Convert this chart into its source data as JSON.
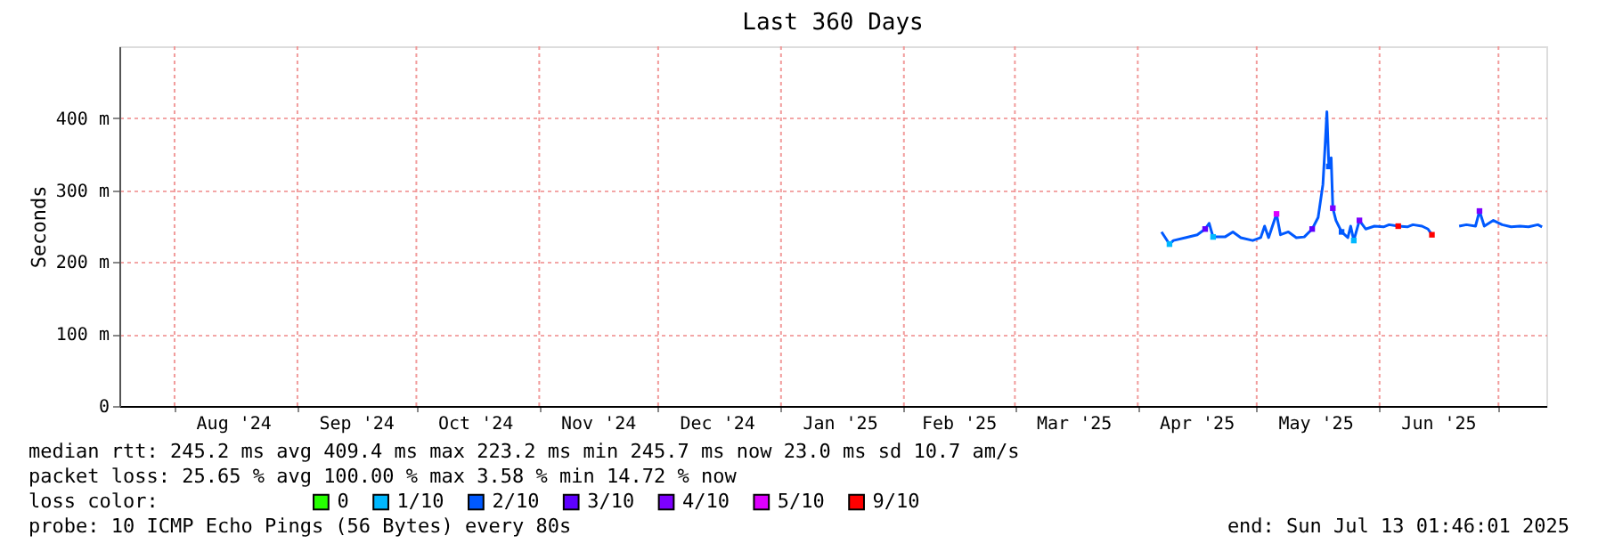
{
  "chart_data": {
    "type": "line",
    "title": "Last 360 Days",
    "ylabel": "Seconds",
    "legend_title": "loss color:",
    "legend": "bottom",
    "grid": true,
    "xlim": [
      "2024-07-18T01:46",
      "2025-07-13T01:46"
    ],
    "ylim": [
      0,
      500
    ],
    "yticks": [
      0,
      {
        "value": 100,
        "label": "100 m"
      },
      {
        "value": 200,
        "label": "200 m"
      },
      {
        "value": 300,
        "label": "300 m"
      },
      {
        "value": 400,
        "label": "400 m"
      }
    ],
    "xticks": [
      {
        "value": "2024-08-01",
        "label": null
      },
      {
        "value": "2024-08-16",
        "label": "Aug '24"
      },
      {
        "value": "2024-09-01",
        "label": null
      },
      {
        "value": "2024-09-16",
        "label": "Sep '24"
      },
      {
        "value": "2024-10-01",
        "label": null
      },
      {
        "value": "2024-10-16",
        "label": "Oct '24"
      },
      {
        "value": "2024-11-01",
        "label": null
      },
      {
        "value": "2024-11-16",
        "label": "Nov '24"
      },
      {
        "value": "2024-12-01",
        "label": null
      },
      {
        "value": "2024-12-16",
        "label": "Dec '24"
      },
      {
        "value": "2025-01-01",
        "label": null
      },
      {
        "value": "2025-01-16",
        "label": "Jan '25"
      },
      {
        "value": "2025-02-01",
        "label": null
      },
      {
        "value": "2025-02-15",
        "label": "Feb '25"
      },
      {
        "value": "2025-03-01",
        "label": null
      },
      {
        "value": "2025-03-16",
        "label": "Mar '25"
      },
      {
        "value": "2025-04-01",
        "label": null
      },
      {
        "value": "2025-04-16",
        "label": "Apr '25"
      },
      {
        "value": "2025-05-01",
        "label": null
      },
      {
        "value": "2025-05-16",
        "label": "May '25"
      },
      {
        "value": "2025-06-01",
        "label": null
      },
      {
        "value": "2025-06-16",
        "label": "Jun '25"
      },
      {
        "value": "2025-07-01",
        "label": null
      }
    ],
    "series": [
      {
        "color": "#0059ff",
        "x": [
          "2025-04-07",
          "2025-04-09",
          "2025-04-10",
          "2025-04-13",
          "2025-04-16",
          "2025-04-18",
          "2025-04-19",
          "2025-04-20",
          "2025-04-23",
          "2025-04-25",
          "2025-04-27",
          "2025-04-30",
          "2025-05-02",
          "2025-05-03",
          "2025-05-04",
          "2025-05-06",
          "2025-05-07",
          "2025-05-09",
          "2025-05-11",
          "2025-05-13",
          "2025-05-15",
          "2025-05-16T12:00",
          "2025-05-17T17:00",
          "2025-05-18T07:00",
          "2025-05-18T17:00",
          "2025-05-19T05:00",
          "2025-05-19T19:00",
          "2025-05-20T05:00",
          "2025-05-21",
          "2025-05-22T10:00",
          "2025-05-24",
          "2025-05-24T17:00",
          "2025-05-25T12:00",
          "2025-05-26T22:00",
          "2025-05-28T12:00",
          "2025-05-30T17:00",
          "2025-06-02",
          "2025-06-03T10:00",
          "2025-06-05T17:00",
          "2025-06-08",
          "2025-06-09T10:00",
          "2025-06-11T17:00",
          "2025-06-13T05:00",
          "2025-06-14T05:00",
          "2025-06-18",
          "2025-06-21T02:00",
          "2025-06-22T22:00",
          "2025-06-25T05:00",
          "2025-06-26T05:00",
          "2025-06-27T10:00",
          "2025-06-29T17:00",
          "2025-07-01T22:00",
          "2025-07-04T05:00",
          "2025-07-06T10:00",
          "2025-07-08T14:00",
          "2025-07-10T22:00",
          "2025-07-12"
        ],
        "values": [
          242,
          225,
          230,
          234,
          238,
          246,
          254,
          235,
          235,
          242,
          234,
          230,
          234,
          250,
          234,
          267,
          238,
          242,
          234,
          235,
          246,
          262,
          308,
          365,
          409,
          333,
          345,
          275,
          258,
          242,
          234,
          250,
          230,
          258,
          246,
          250,
          249,
          252,
          250,
          249,
          252,
          250,
          246,
          238,
          null,
          250,
          252,
          250,
          271,
          250,
          258,
          252,
          249,
          250,
          249,
          252,
          249
        ]
      },
      {
        "type": "scatter",
        "name": "0",
        "color": "#26ff00"
      },
      {
        "type": "scatter",
        "name": "1/10",
        "color": "#00b8ff",
        "x": [
          "2025-04-09",
          "2025-04-20",
          "2025-05-25T12:00"
        ],
        "values": [
          225,
          235,
          230
        ]
      },
      {
        "type": "scatter",
        "name": "2/10",
        "color": "#0059ff",
        "x": [
          "2025-05-19T05:00",
          "2025-05-22T10:00"
        ],
        "values": [
          333,
          242
        ]
      },
      {
        "type": "scatter",
        "name": "3/10",
        "color": "#5e00ff",
        "x": [
          "2025-04-18",
          "2025-05-15"
        ],
        "values": [
          246,
          246
        ]
      },
      {
        "type": "scatter",
        "name": "4/10",
        "color": "#7e00ff",
        "x": [
          "2025-05-20T05:00",
          "2025-06-26T05:00",
          "2025-05-26T22:00"
        ],
        "values": [
          275,
          271,
          258
        ]
      },
      {
        "type": "scatter",
        "name": "5/10",
        "color": "#dd00ff",
        "x": [
          "2025-05-06"
        ],
        "values": [
          267
        ]
      },
      {
        "type": "scatter",
        "name": "9/10",
        "color": "#ff0000",
        "x": [
          "2025-06-14T05:00",
          "2025-06-05T17:00"
        ],
        "values": [
          238,
          250
        ]
      }
    ],
    "annotations": [
      "median rtt:  245.2 ms avg  409.4 ms max  223.2 ms min  245.7 ms now  23.0 ms sd  10.7   am/s",
      "packet loss: 25.65 % avg  100.00 % max  3.58 % min  14.72 % now",
      "probe:       10 ICMP Echo Pings (56 Bytes) every 80s",
      "end: Sun Jul 13 01:46:01 2025"
    ]
  }
}
